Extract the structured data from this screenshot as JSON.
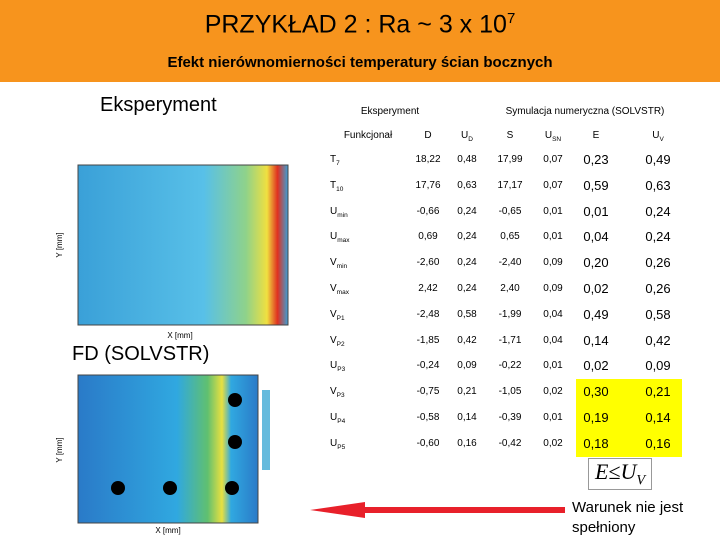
{
  "header": {
    "title": "PRZYKŁAD 2 : Ra ~ 3 x 10",
    "title_sup": "7",
    "subtitle": "Efekt nierównomierności temperatury ścian bocznych"
  },
  "labels": {
    "experiment": "Eksperyment",
    "simulation": "FD  (SOLVSTR)"
  },
  "plots": [
    {
      "x_label": "X [mm]",
      "y_label": "Y [mm]"
    },
    {
      "x_label": "X [mm]",
      "y_label": "Y [mm]"
    }
  ],
  "table": {
    "group_headers": [
      "Eksperyment",
      "Symulacja numeryczna (SOLVSTR)"
    ],
    "columns": [
      {
        "main": "Funkcjonał",
        "sub": ""
      },
      {
        "main": "D",
        "sub": ""
      },
      {
        "main": "U",
        "sub": "D"
      },
      {
        "main": "S",
        "sub": ""
      },
      {
        "main": "U",
        "sub": "SN"
      },
      {
        "main": "E",
        "sub": ""
      },
      {
        "main": "U",
        "sub": "V"
      }
    ],
    "rows": [
      {
        "symbol": "T",
        "sub": "7",
        "values": [
          "18,22",
          "0,48",
          "17,99",
          "0,07",
          "0,23",
          "0,49"
        ],
        "highlight": false
      },
      {
        "symbol": "T",
        "sub": "10",
        "values": [
          "17,76",
          "0,63",
          "17,17",
          "0,07",
          "0,59",
          "0,63"
        ],
        "highlight": false
      },
      {
        "symbol": "U",
        "sub": "min",
        "values": [
          "-0,66",
          "0,24",
          "-0,65",
          "0,01",
          "0,01",
          "0,24"
        ],
        "highlight": false
      },
      {
        "symbol": "U",
        "sub": "max",
        "values": [
          "0,69",
          "0,24",
          "0,65",
          "0,01",
          "0,04",
          "0,24"
        ],
        "highlight": false
      },
      {
        "symbol": "V",
        "sub": "min",
        "values": [
          "-2,60",
          "0,24",
          "-2,40",
          "0,09",
          "0,20",
          "0,26"
        ],
        "highlight": false
      },
      {
        "symbol": "V",
        "sub": "max",
        "values": [
          "2,42",
          "0,24",
          "2,40",
          "0,09",
          "0,02",
          "0,26"
        ],
        "highlight": false
      },
      {
        "symbol": "V",
        "sub": "P1",
        "values": [
          "-2,48",
          "0,58",
          "-1,99",
          "0,04",
          "0,49",
          "0,58"
        ],
        "highlight": false
      },
      {
        "symbol": "V",
        "sub": "P2",
        "values": [
          "-1,85",
          "0,42",
          "-1,71",
          "0,04",
          "0,14",
          "0,42"
        ],
        "highlight": false
      },
      {
        "symbol": "U",
        "sub": "P3",
        "values": [
          "-0,24",
          "0,09",
          "-0,22",
          "0,01",
          "0,02",
          "0,09"
        ],
        "highlight": false
      },
      {
        "symbol": "V",
        "sub": "P3",
        "values": [
          "-0,75",
          "0,21",
          "-1,05",
          "0,02",
          "0,30",
          "0,21"
        ],
        "highlight": true
      },
      {
        "symbol": "U",
        "sub": "P4",
        "values": [
          "-0,58",
          "0,14",
          "-0,39",
          "0,01",
          "0,19",
          "0,14"
        ],
        "highlight": true
      },
      {
        "symbol": "U",
        "sub": "P5",
        "values": [
          "-0,60",
          "0,16",
          "-0,42",
          "0,02",
          "0,18",
          "0,16"
        ],
        "highlight": true
      }
    ]
  },
  "formula": {
    "lhs": "E",
    "op": "≤",
    "rhs": "U",
    "rhs_sub": "V"
  },
  "note": "Warunek nie jest spełniony"
}
